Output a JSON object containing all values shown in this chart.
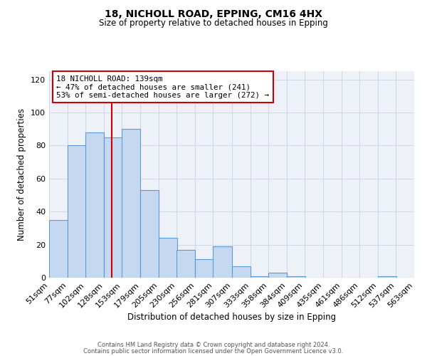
{
  "title1": "18, NICHOLL ROAD, EPPING, CM16 4HX",
  "title2": "Size of property relative to detached houses in Epping",
  "xlabel": "Distribution of detached houses by size in Epping",
  "ylabel": "Number of detached properties",
  "bar_left_edges": [
    51,
    77,
    102,
    128,
    153,
    179,
    205,
    230,
    256,
    281,
    307,
    333,
    358,
    384,
    409,
    435,
    461,
    486,
    512,
    537
  ],
  "bar_heights": [
    35,
    80,
    88,
    85,
    90,
    53,
    24,
    17,
    11,
    19,
    7,
    1,
    3,
    1,
    0,
    0,
    0,
    0,
    1,
    0
  ],
  "bin_width": 26,
  "bar_color": "#c5d8f0",
  "bar_edge_color": "#5b9bd5",
  "tick_labels": [
    "51sqm",
    "77sqm",
    "102sqm",
    "128sqm",
    "153sqm",
    "179sqm",
    "205sqm",
    "230sqm",
    "256sqm",
    "281sqm",
    "307sqm",
    "333sqm",
    "358sqm",
    "384sqm",
    "409sqm",
    "435sqm",
    "461sqm",
    "486sqm",
    "512sqm",
    "537sqm",
    "563sqm"
  ],
  "vline_x": 139,
  "vline_color": "#cc0000",
  "annotation_line1": "18 NICHOLL ROAD: 139sqm",
  "annotation_line2": "← 47% of detached houses are smaller (241)",
  "annotation_line3": "53% of semi-detached houses are larger (272) →",
  "ylim": [
    0,
    125
  ],
  "yticks": [
    0,
    20,
    40,
    60,
    80,
    100,
    120
  ],
  "grid_color": "#d0d8e8",
  "bg_color": "#eef2f8",
  "footer1": "Contains HM Land Registry data © Crown copyright and database right 2024.",
  "footer2": "Contains public sector information licensed under the Open Government Licence v3.0."
}
